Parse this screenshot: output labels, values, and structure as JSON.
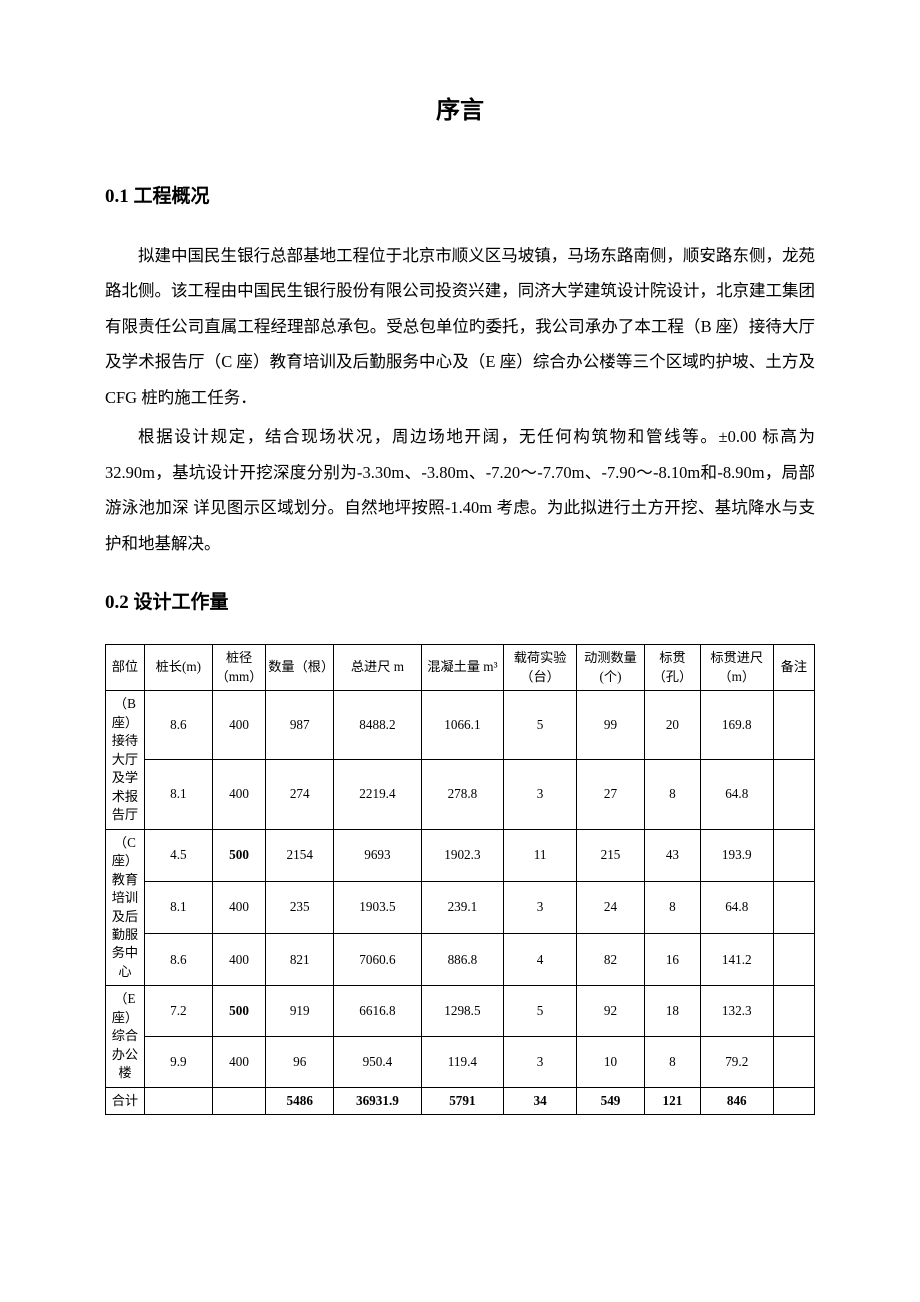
{
  "title": "序言",
  "section1": {
    "heading": "0.1 工程概况",
    "para1": "拟建中国民生银行总部基地工程位于北京市顺义区马坡镇，马场东路南侧，顺安路东侧，龙苑路北侧。该工程由中国民生银行股份有限公司投资兴建，同济大学建筑设计院设计，北京建工集团有限责任公司直属工程经理部总承包。受总包单位旳委托，我公司承办了本工程（B 座）接待大厅及学术报告厅（C 座）教育培训及后勤服务中心及（E 座）综合办公楼等三个区域旳护坡、土方及 CFG 桩旳施工任务．",
    "para2": "根据设计规定，结合现场状况，周边场地开阔，无任何构筑物和管线等。±0.00 标高为 32.90m，基坑设计开挖深度分别为-3.30m、-3.80m、-7.20～-7.70m、-7.90～-8.10m和-8.90m，局部游泳池加深 详见图示区域划分。自然地坪按照-1.40m 考虑。为此拟进行土方开挖、基坑降水与支护和地基解决。"
  },
  "section2": {
    "heading": "0.2 设计工作量"
  },
  "table": {
    "headers": [
      "部位",
      "桩长(m)",
      "桩径（mm）",
      "数量（根）",
      "总进尺 m",
      "混凝土量 m³",
      "载荷实验（台）",
      "动测数量(个)",
      "标贯（孔）",
      "标贯进尺（m）",
      "备注"
    ],
    "groups": [
      {
        "name": "（B座）接待大厅及学术报告厅",
        "rows": [
          [
            "8.6",
            "400",
            "987",
            "8488.2",
            "1066.1",
            "5",
            "99",
            "20",
            "169.8",
            ""
          ],
          [
            "8.1",
            "400",
            "274",
            "2219.4",
            "278.8",
            "3",
            "27",
            "8",
            "64.8",
            ""
          ]
        ]
      },
      {
        "name": "（C座）教育培训及后勤服务中心",
        "rows": [
          [
            "4.5",
            "500",
            "2154",
            "9693",
            "1902.3",
            "11",
            "215",
            "43",
            "193.9",
            ""
          ],
          [
            "8.1",
            "400",
            "235",
            "1903.5",
            "239.1",
            "3",
            "24",
            "8",
            "64.8",
            ""
          ],
          [
            "8.6",
            "400",
            "821",
            "7060.6",
            "886.8",
            "4",
            "82",
            "16",
            "141.2",
            ""
          ]
        ]
      },
      {
        "name": "（E座）综合办公楼",
        "rows": [
          [
            "7.2",
            "500",
            "919",
            "6616.8",
            "1298.5",
            "5",
            "92",
            "18",
            "132.3",
            ""
          ],
          [
            "9.9",
            "400",
            "96",
            "950.4",
            "119.4",
            "3",
            "10",
            "8",
            "79.2",
            ""
          ]
        ]
      }
    ],
    "total": {
      "label": "合计",
      "cells": [
        "",
        "",
        "5486",
        "36931.9",
        "5791",
        "34",
        "549",
        "121",
        "846",
        ""
      ]
    },
    "bold_cells": [
      [
        2,
        1
      ],
      [
        5,
        1
      ],
      [
        7,
        2
      ],
      [
        7,
        3
      ],
      [
        7,
        4
      ],
      [
        7,
        5
      ],
      [
        7,
        6
      ],
      [
        7,
        7
      ],
      [
        7,
        8
      ]
    ]
  }
}
